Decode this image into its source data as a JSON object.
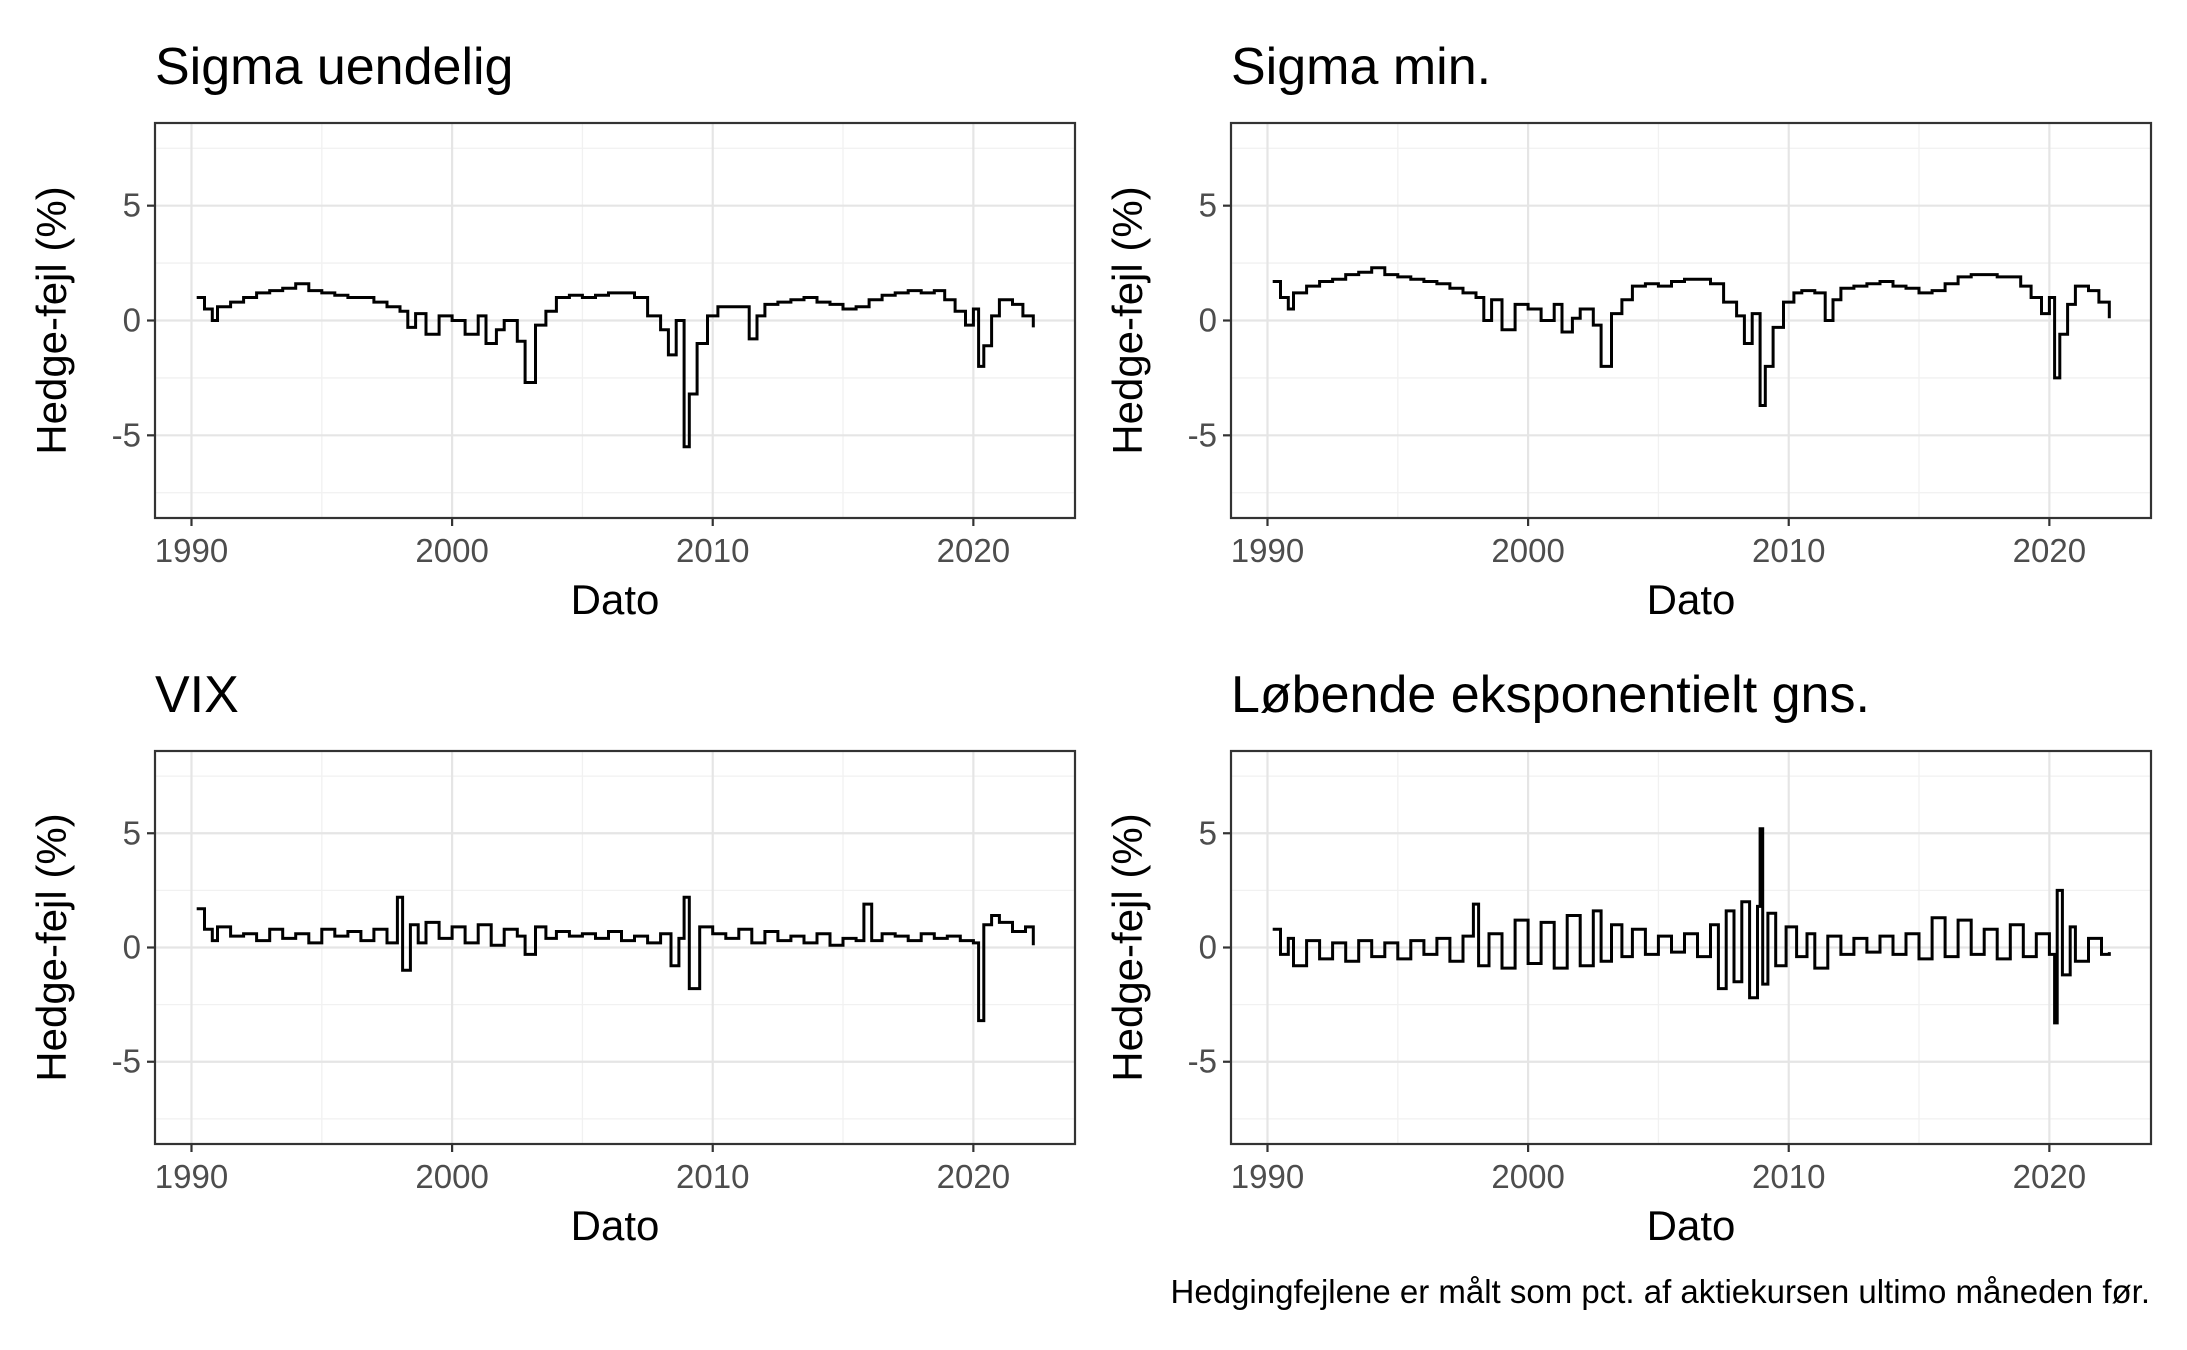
{
  "caption": "Hedgingfejlene er målt som pct. af aktiekursen ultimo måneden før.",
  "chart_data": [
    {
      "type": "line",
      "title": "Sigma uendelig",
      "xlabel": "Dato",
      "ylabel": "Hedge-fejl (%)",
      "xlim": [
        1988.6,
        2023.9
      ],
      "ylim": [
        -8.6,
        8.6
      ],
      "x_ticks": [
        1990,
        2000,
        2010,
        2020
      ],
      "x_tick_labels": [
        "1990",
        "2000",
        "2010",
        "2020"
      ],
      "y_ticks": [
        -5,
        0,
        5
      ],
      "y_tick_labels": [
        "-5",
        "0",
        "5"
      ],
      "grid": true,
      "series": [
        {
          "x": [
            1990.2,
            1990.5,
            1990.8,
            1991.0,
            1991.5,
            1992.0,
            1992.5,
            1993.0,
            1993.5,
            1994.0,
            1994.5,
            1995.0,
            1995.5,
            1996.0,
            1996.5,
            1997.0,
            1997.5,
            1998.0,
            1998.3,
            1998.6,
            1999.0,
            1999.5,
            2000.0,
            2000.5,
            2001.0,
            2001.3,
            2001.7,
            2002.0,
            2002.5,
            2002.8,
            2003.2,
            2003.6,
            2004.0,
            2004.5,
            2005.0,
            2005.5,
            2006.0,
            2006.5,
            2007.0,
            2007.5,
            2008.0,
            2008.3,
            2008.6,
            2008.9,
            2009.1,
            2009.4,
            2009.8,
            2010.2,
            2010.5,
            2011.0,
            2011.4,
            2011.7,
            2012.0,
            2012.5,
            2013.0,
            2013.5,
            2014.0,
            2014.5,
            2015.0,
            2015.5,
            2016.0,
            2016.5,
            2017.0,
            2017.5,
            2018.0,
            2018.5,
            2018.9,
            2019.3,
            2019.7,
            2020.0,
            2020.2,
            2020.4,
            2020.7,
            2021.0,
            2021.5,
            2021.9,
            2022.3
          ],
          "y": [
            1.0,
            0.5,
            0.0,
            0.6,
            0.8,
            1.0,
            1.2,
            1.3,
            1.4,
            1.6,
            1.3,
            1.2,
            1.1,
            1.0,
            1.0,
            0.8,
            0.6,
            0.4,
            -0.3,
            0.3,
            -0.6,
            0.2,
            0.0,
            -0.6,
            0.2,
            -1.0,
            -0.4,
            0.0,
            -0.9,
            -2.7,
            -0.2,
            0.4,
            1.0,
            1.1,
            1.0,
            1.1,
            1.2,
            1.2,
            1.0,
            0.2,
            -0.4,
            -1.5,
            0.0,
            -5.5,
            -3.2,
            -1.0,
            0.2,
            0.6,
            0.6,
            0.6,
            -0.8,
            0.2,
            0.7,
            0.8,
            0.9,
            1.0,
            0.8,
            0.7,
            0.5,
            0.6,
            0.9,
            1.1,
            1.2,
            1.3,
            1.2,
            1.3,
            0.9,
            0.4,
            -0.2,
            0.5,
            -2.0,
            -1.1,
            0.2,
            0.9,
            0.7,
            0.2,
            -0.3
          ]
        }
      ]
    },
    {
      "type": "line",
      "title": "Sigma min.",
      "xlabel": "Dato",
      "ylabel": "Hedge-fejl (%)",
      "xlim": [
        1988.6,
        2023.9
      ],
      "ylim": [
        -8.6,
        8.6
      ],
      "x_ticks": [
        1990,
        2000,
        2010,
        2020
      ],
      "x_tick_labels": [
        "1990",
        "2000",
        "2010",
        "2020"
      ],
      "y_ticks": [
        -5,
        0,
        5
      ],
      "y_tick_labels": [
        "-5",
        "0",
        "5"
      ],
      "grid": true,
      "series": [
        {
          "x": [
            1990.2,
            1990.5,
            1990.8,
            1991.0,
            1991.5,
            1992.0,
            1992.5,
            1993.0,
            1993.5,
            1994.0,
            1994.5,
            1995.0,
            1995.5,
            1996.0,
            1996.5,
            1997.0,
            1997.5,
            1998.0,
            1998.3,
            1998.6,
            1999.0,
            1999.5,
            2000.0,
            2000.5,
            2001.0,
            2001.3,
            2001.7,
            2002.0,
            2002.5,
            2002.8,
            2003.2,
            2003.6,
            2004.0,
            2004.5,
            2005.0,
            2005.5,
            2006.0,
            2006.5,
            2007.0,
            2007.5,
            2008.0,
            2008.3,
            2008.6,
            2008.9,
            2009.1,
            2009.4,
            2009.8,
            2010.2,
            2010.5,
            2011.0,
            2011.4,
            2011.7,
            2012.0,
            2012.5,
            2013.0,
            2013.5,
            2014.0,
            2014.5,
            2015.0,
            2015.5,
            2016.0,
            2016.5,
            2017.0,
            2017.5,
            2018.0,
            2018.5,
            2018.9,
            2019.3,
            2019.7,
            2020.0,
            2020.2,
            2020.4,
            2020.7,
            2021.0,
            2021.5,
            2021.9,
            2022.3
          ],
          "y": [
            1.7,
            1.0,
            0.5,
            1.2,
            1.5,
            1.7,
            1.8,
            2.0,
            2.1,
            2.3,
            2.0,
            1.9,
            1.8,
            1.7,
            1.6,
            1.4,
            1.2,
            1.0,
            0.0,
            0.9,
            -0.4,
            0.7,
            0.5,
            0.0,
            0.7,
            -0.5,
            0.1,
            0.5,
            -0.2,
            -2.0,
            0.3,
            0.9,
            1.5,
            1.6,
            1.5,
            1.7,
            1.8,
            1.8,
            1.6,
            0.8,
            0.2,
            -1.0,
            0.3,
            -3.7,
            -2.0,
            -0.3,
            0.8,
            1.2,
            1.3,
            1.2,
            0.0,
            0.9,
            1.4,
            1.5,
            1.6,
            1.7,
            1.5,
            1.4,
            1.2,
            1.3,
            1.6,
            1.9,
            2.0,
            2.0,
            1.9,
            1.9,
            1.5,
            1.0,
            0.3,
            1.0,
            -2.5,
            -0.6,
            0.7,
            1.5,
            1.3,
            0.8,
            0.1
          ]
        }
      ]
    },
    {
      "type": "line",
      "title": "VIX",
      "xlabel": "Dato",
      "ylabel": "Hedge-fejl (%)",
      "xlim": [
        1988.6,
        2023.9
      ],
      "ylim": [
        -8.6,
        8.6
      ],
      "x_ticks": [
        1990,
        2000,
        2010,
        2020
      ],
      "x_tick_labels": [
        "1990",
        "2000",
        "2010",
        "2020"
      ],
      "y_ticks": [
        -5,
        0,
        5
      ],
      "y_tick_labels": [
        "-5",
        "0",
        "5"
      ],
      "grid": true,
      "series": [
        {
          "x": [
            1990.2,
            1990.5,
            1990.8,
            1991.0,
            1991.5,
            1992.0,
            1992.5,
            1993.0,
            1993.5,
            1994.0,
            1994.5,
            1995.0,
            1995.5,
            1996.0,
            1996.5,
            1997.0,
            1997.5,
            1997.9,
            1998.1,
            1998.4,
            1998.7,
            1999.0,
            1999.5,
            2000.0,
            2000.5,
            2001.0,
            2001.5,
            2002.0,
            2002.5,
            2002.8,
            2003.2,
            2003.6,
            2004.0,
            2004.5,
            2005.0,
            2005.5,
            2006.0,
            2006.5,
            2007.0,
            2007.5,
            2008.0,
            2008.4,
            2008.7,
            2008.9,
            2009.1,
            2009.5,
            2010.0,
            2010.5,
            2011.0,
            2011.5,
            2012.0,
            2012.5,
            2013.0,
            2013.5,
            2014.0,
            2014.5,
            2015.0,
            2015.5,
            2015.8,
            2016.1,
            2016.5,
            2017.0,
            2017.5,
            2018.0,
            2018.5,
            2019.0,
            2019.5,
            2020.0,
            2020.2,
            2020.4,
            2020.7,
            2021.0,
            2021.5,
            2022.0,
            2022.3
          ],
          "y": [
            1.7,
            0.8,
            0.3,
            0.9,
            0.5,
            0.6,
            0.3,
            0.8,
            0.4,
            0.6,
            0.2,
            0.8,
            0.5,
            0.7,
            0.3,
            0.8,
            0.2,
            2.2,
            -1.0,
            1.0,
            0.2,
            1.1,
            0.4,
            0.9,
            0.2,
            1.0,
            0.1,
            0.8,
            0.5,
            -0.3,
            0.9,
            0.4,
            0.7,
            0.5,
            0.6,
            0.4,
            0.7,
            0.3,
            0.5,
            0.2,
            0.6,
            -0.8,
            0.4,
            2.2,
            -1.8,
            0.9,
            0.6,
            0.4,
            0.8,
            0.2,
            0.7,
            0.3,
            0.5,
            0.2,
            0.6,
            0.1,
            0.4,
            0.3,
            1.9,
            0.3,
            0.6,
            0.5,
            0.3,
            0.6,
            0.4,
            0.5,
            0.3,
            0.2,
            -3.2,
            1.0,
            1.4,
            1.1,
            0.7,
            0.9,
            0.1
          ]
        }
      ]
    },
    {
      "type": "line",
      "title": "Løbende eksponentielt gns.",
      "xlabel": "Dato",
      "ylabel": "Hedge-fejl (%)",
      "xlim": [
        1988.6,
        2023.9
      ],
      "ylim": [
        -8.6,
        8.6
      ],
      "x_ticks": [
        1990,
        2000,
        2010,
        2020
      ],
      "x_tick_labels": [
        "1990",
        "2000",
        "2010",
        "2020"
      ],
      "y_ticks": [
        -5,
        0,
        5
      ],
      "y_tick_labels": [
        "-5",
        "0",
        "5"
      ],
      "grid": true,
      "series": [
        {
          "x": [
            1990.2,
            1990.5,
            1990.8,
            1991.0,
            1991.5,
            1992.0,
            1992.5,
            1993.0,
            1993.5,
            1994.0,
            1994.5,
            1995.0,
            1995.5,
            1996.0,
            1996.5,
            1997.0,
            1997.5,
            1997.9,
            1998.1,
            1998.5,
            1999.0,
            1999.5,
            2000.0,
            2000.5,
            2001.0,
            2001.5,
            2002.0,
            2002.5,
            2002.8,
            2003.2,
            2003.6,
            2004.0,
            2004.5,
            2005.0,
            2005.5,
            2006.0,
            2006.5,
            2007.0,
            2007.3,
            2007.6,
            2007.9,
            2008.2,
            2008.5,
            2008.8,
            2008.9,
            2009.0,
            2009.2,
            2009.5,
            2009.9,
            2010.3,
            2010.7,
            2011.0,
            2011.5,
            2012.0,
            2012.5,
            2013.0,
            2013.5,
            2014.0,
            2014.5,
            2015.0,
            2015.5,
            2016.0,
            2016.5,
            2017.0,
            2017.5,
            2018.0,
            2018.5,
            2019.0,
            2019.5,
            2020.0,
            2020.2,
            2020.3,
            2020.5,
            2020.8,
            2021.0,
            2021.5,
            2022.0,
            2022.3
          ],
          "y": [
            0.8,
            -0.3,
            0.4,
            -0.8,
            0.3,
            -0.5,
            0.2,
            -0.6,
            0.3,
            -0.4,
            0.2,
            -0.5,
            0.3,
            -0.3,
            0.4,
            -0.6,
            0.5,
            1.9,
            -0.8,
            0.6,
            -0.9,
            1.2,
            -0.7,
            1.1,
            -0.9,
            1.4,
            -0.8,
            1.6,
            -0.6,
            1.0,
            -0.4,
            0.8,
            -0.3,
            0.5,
            -0.2,
            0.6,
            -0.4,
            1.0,
            -1.8,
            1.6,
            -1.5,
            2.0,
            -2.2,
            1.8,
            5.2,
            -1.6,
            1.5,
            -0.8,
            0.9,
            -0.4,
            0.6,
            -0.9,
            0.5,
            -0.3,
            0.4,
            -0.2,
            0.5,
            -0.3,
            0.6,
            -0.5,
            1.3,
            -0.4,
            1.2,
            -0.3,
            0.8,
            -0.5,
            1.0,
            -0.4,
            0.6,
            -0.3,
            -3.3,
            2.5,
            -1.2,
            0.9,
            -0.6,
            0.4,
            -0.3,
            -0.2
          ]
        }
      ]
    }
  ]
}
